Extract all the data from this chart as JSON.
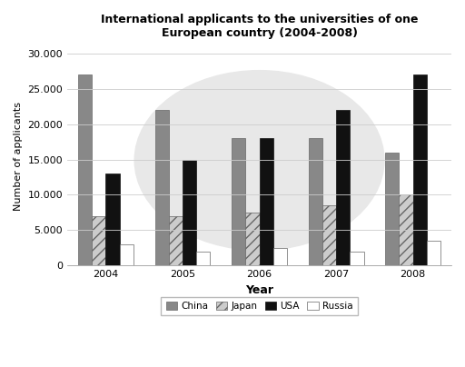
{
  "title": "International applicants to the universities of one\nEuropean country (2004-2008)",
  "xlabel": "Year",
  "ylabel": "Number of applicants",
  "years": [
    "2004",
    "2005",
    "2006",
    "2007",
    "2008"
  ],
  "china": [
    27000,
    22000,
    18000,
    18000,
    16000
  ],
  "japan": [
    7000,
    7000,
    7500,
    8500,
    10000
  ],
  "usa": [
    13000,
    15000,
    18000,
    22000,
    27000
  ],
  "russia": [
    3000,
    2000,
    2500,
    2000,
    3500
  ],
  "china_color": "#888888",
  "japan_color": "#cccccc",
  "usa_color": "#111111",
  "russia_color": "#ffffff",
  "ylim": [
    0,
    31000
  ],
  "yticks": [
    0,
    5000,
    10000,
    15000,
    20000,
    25000,
    30000
  ],
  "ytick_labels": [
    "0",
    "5.000",
    "10.000",
    "15.000",
    "20.000",
    "25.000",
    "30.000"
  ],
  "bar_width": 0.18,
  "background_color": "#ffffff",
  "grid_color": "#cccccc"
}
